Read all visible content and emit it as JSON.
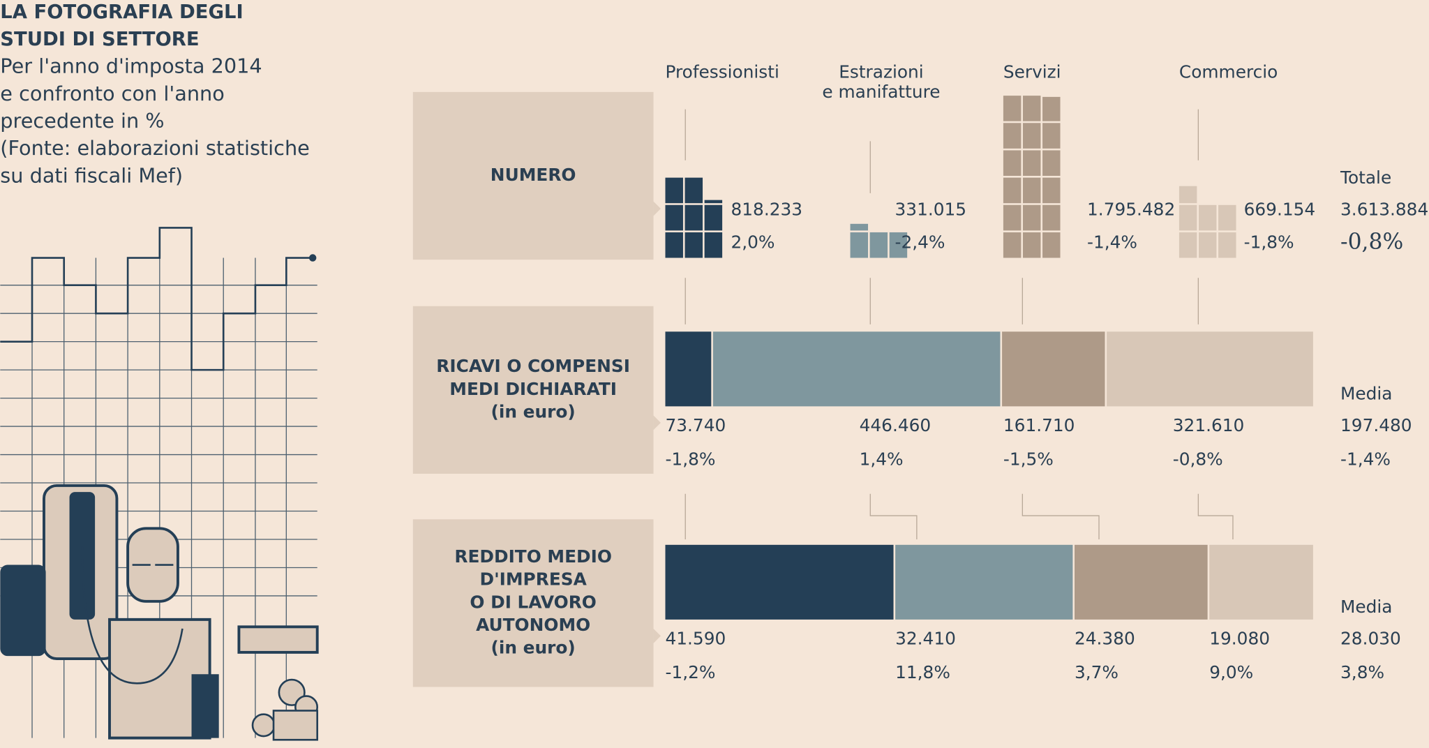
{
  "title": [
    "LA FOTOGRAFIA DEGLI",
    "STUDI DI SETTORE"
  ],
  "subtitle": [
    "Per l'anno d'imposta 2014",
    "e confronto con l'anno",
    "precedente in %",
    "(Fonte: elaborazioni statistiche",
    "su dati fiscali Mef)"
  ],
  "sectors": [
    {
      "name": [
        "Professionisti"
      ],
      "color": "#243f56"
    },
    {
      "name": [
        "Estrazioni",
        "e manifatture"
      ],
      "color": "#7f979e"
    },
    {
      "name": [
        "Servizi"
      ],
      "color": "#ae9a88"
    },
    {
      "name": [
        "Commercio"
      ],
      "color": "#d8c7b7"
    }
  ],
  "rows": [
    {
      "label": [
        "NUMERO"
      ],
      "values": [
        818233,
        331015,
        1795482,
        669154
      ],
      "value_labels": [
        "818.233",
        "331.015",
        "1.795.482",
        "669.154"
      ],
      "changes": [
        "2,0%",
        "-2,4%",
        "-1,4%",
        "-1,8%"
      ],
      "total_label": "Totale",
      "total": 3613884,
      "total_value_label": "3.613.884",
      "total_change": "-0,8%"
    },
    {
      "label": [
        "RICAVI O COMPENSI",
        "MEDI DICHIARATI",
        "(in euro)"
      ],
      "values": [
        73740,
        446460,
        161710,
        321610
      ],
      "value_labels": [
        "73.740",
        "446.460",
        "161.710",
        "321.610"
      ],
      "changes": [
        "-1,8%",
        "1,4%",
        "-1,5%",
        "-0,8%"
      ],
      "total_label": "Media",
      "total": 197480,
      "total_value_label": "197.480",
      "total_change": "-1,4%"
    },
    {
      "label": [
        "REDDITO MEDIO",
        "D'IMPRESA",
        "O DI LAVORO",
        "AUTONOMO",
        "(in euro)"
      ],
      "values": [
        41590,
        32410,
        24380,
        19080
      ],
      "value_labels": [
        "41.590",
        "32.410",
        "24.380",
        "19.080"
      ],
      "changes": [
        "-1,2%",
        "11,8%",
        "3,7%",
        "9,0%"
      ],
      "total_label": "Media",
      "total": 28030,
      "total_value_label": "28.030",
      "total_change": "3,8%"
    }
  ]
}
